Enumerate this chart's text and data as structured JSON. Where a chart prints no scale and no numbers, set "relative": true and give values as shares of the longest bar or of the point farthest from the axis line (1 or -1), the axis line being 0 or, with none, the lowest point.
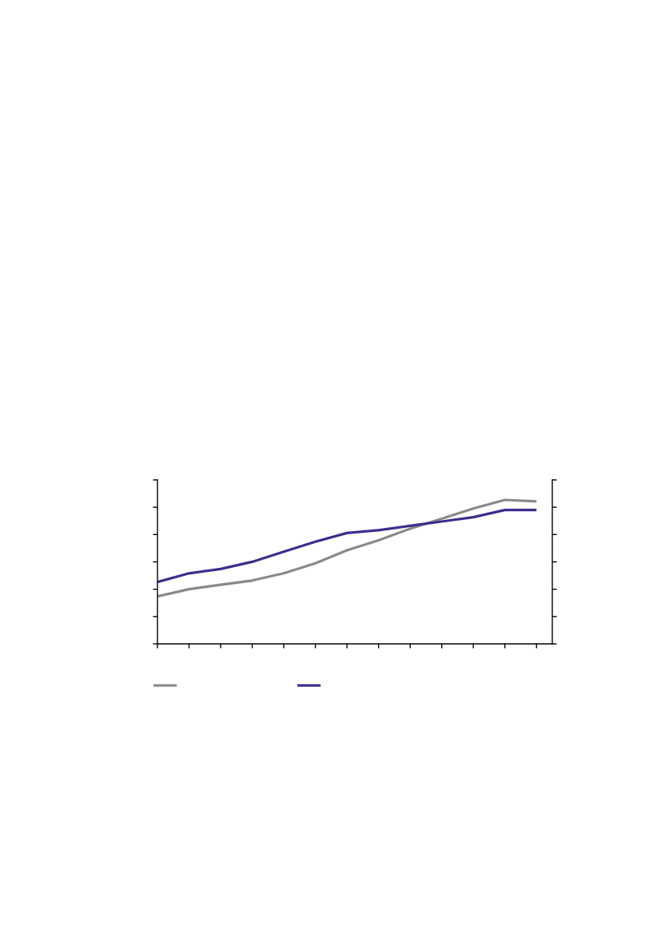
{
  "chart_data": {
    "type": "line",
    "relative": true,
    "categories": [
      null,
      null,
      null,
      null,
      null,
      null,
      null,
      null,
      null,
      null,
      null,
      null,
      null
    ],
    "series": [
      {
        "color": "#898989",
        "values": [
          0.33,
          0.38,
          0.41,
          0.44,
          0.49,
          0.56,
          0.65,
          0.72,
          0.8,
          0.87,
          0.94,
          1.0,
          0.99
        ]
      },
      {
        "color": "#3f2d8c",
        "values": [
          0.43,
          0.49,
          0.52,
          0.57,
          0.64,
          0.71,
          0.77,
          0.79,
          0.82,
          0.85,
          0.88,
          0.93,
          0.93
        ]
      }
    ],
    "line_style": "solid",
    "marker": "none",
    "grid": false
  }
}
